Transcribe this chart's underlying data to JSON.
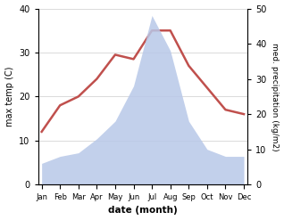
{
  "months": [
    "Jan",
    "Feb",
    "Mar",
    "Apr",
    "May",
    "Jun",
    "Jul",
    "Aug",
    "Sep",
    "Oct",
    "Nov",
    "Dec"
  ],
  "temperature": [
    12,
    18,
    20,
    24,
    29.5,
    28.5,
    35,
    35,
    27,
    22,
    17,
    16
  ],
  "precipitation": [
    6,
    8,
    9,
    13,
    18,
    28,
    48,
    38,
    18,
    10,
    8,
    8
  ],
  "temp_color": "#c0504d",
  "precip_fill_color": "#b8c8e8",
  "ylabel_left": "max temp (C)",
  "ylabel_right": "med. precipitation (kg/m2)",
  "xlabel": "date (month)",
  "ylim_left": [
    0,
    40
  ],
  "ylim_right": [
    0,
    50
  ],
  "yticks_left": [
    0,
    10,
    20,
    30,
    40
  ],
  "yticks_right": [
    0,
    10,
    20,
    30,
    40,
    50
  ],
  "bg_color": "#ffffff",
  "temp_linewidth": 1.8
}
